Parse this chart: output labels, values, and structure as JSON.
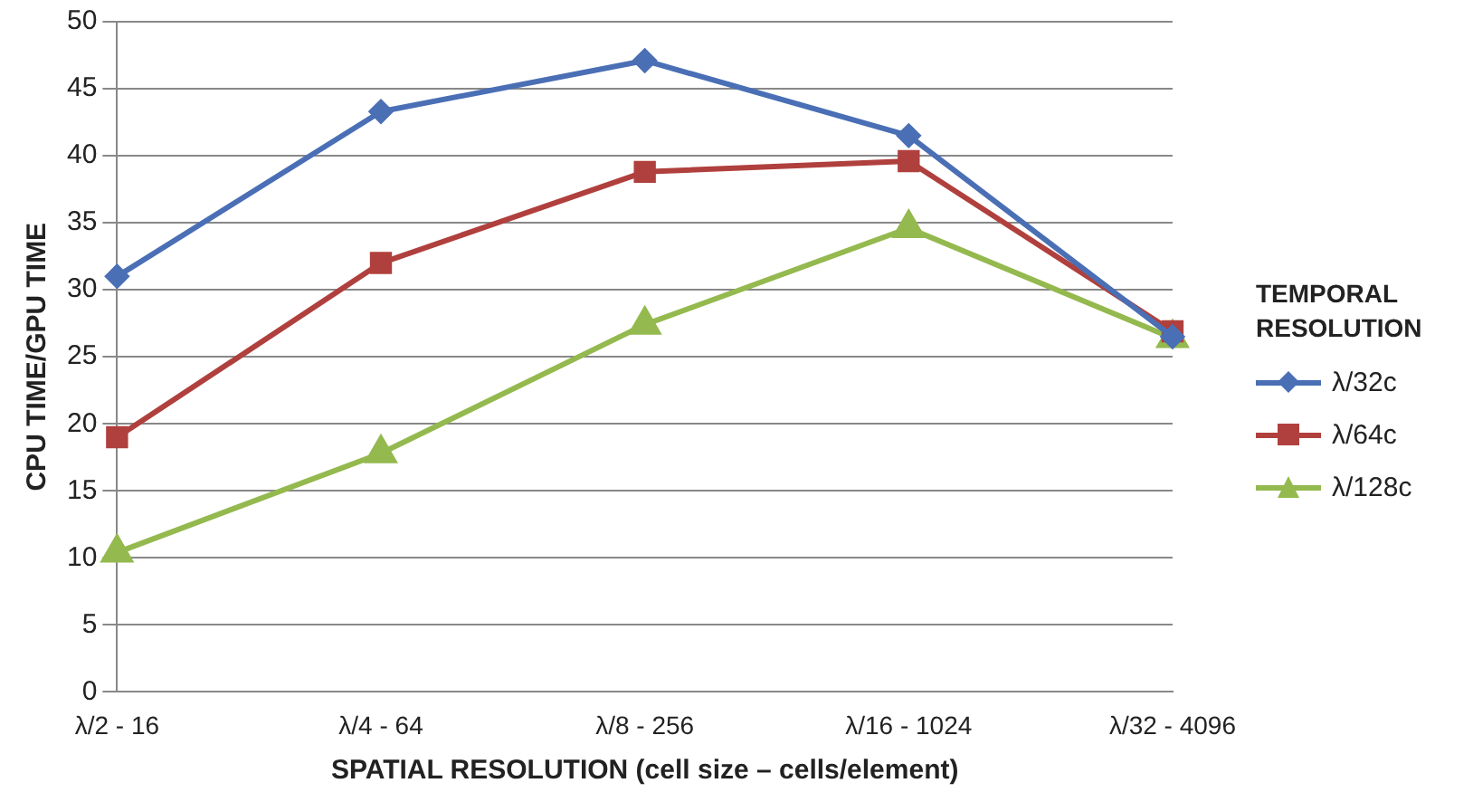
{
  "chart_data": {
    "type": "line",
    "xlabel": "SPATIAL RESOLUTION (cell size – cells/element)",
    "ylabel": "CPU TIME/GPU TIME",
    "legend_title": "TEMPORAL RESOLUTION",
    "categories": [
      "λ/2 - 16",
      "λ/4 - 64",
      "λ/8 - 256",
      "λ/16 - 1024",
      "λ/32 - 4096"
    ],
    "series": [
      {
        "name": "λ/32c",
        "color": "#4a6fb5",
        "marker": "diamond",
        "values": [
          31,
          43.3,
          47.1,
          41.5,
          26.5
        ]
      },
      {
        "name": "λ/64c",
        "color": "#b0403d",
        "marker": "square",
        "values": [
          19,
          32,
          38.8,
          39.6,
          26.9
        ]
      },
      {
        "name": "λ/128c",
        "color": "#94b94e",
        "marker": "triangle",
        "values": [
          10.4,
          17.8,
          27.4,
          34.6,
          26.4
        ]
      }
    ],
    "ylim": [
      0,
      50
    ],
    "yticks": [
      0,
      5,
      10,
      15,
      20,
      25,
      30,
      35,
      40,
      45,
      50
    ],
    "grid": "y",
    "legend": "right",
    "line_style": "solid"
  }
}
